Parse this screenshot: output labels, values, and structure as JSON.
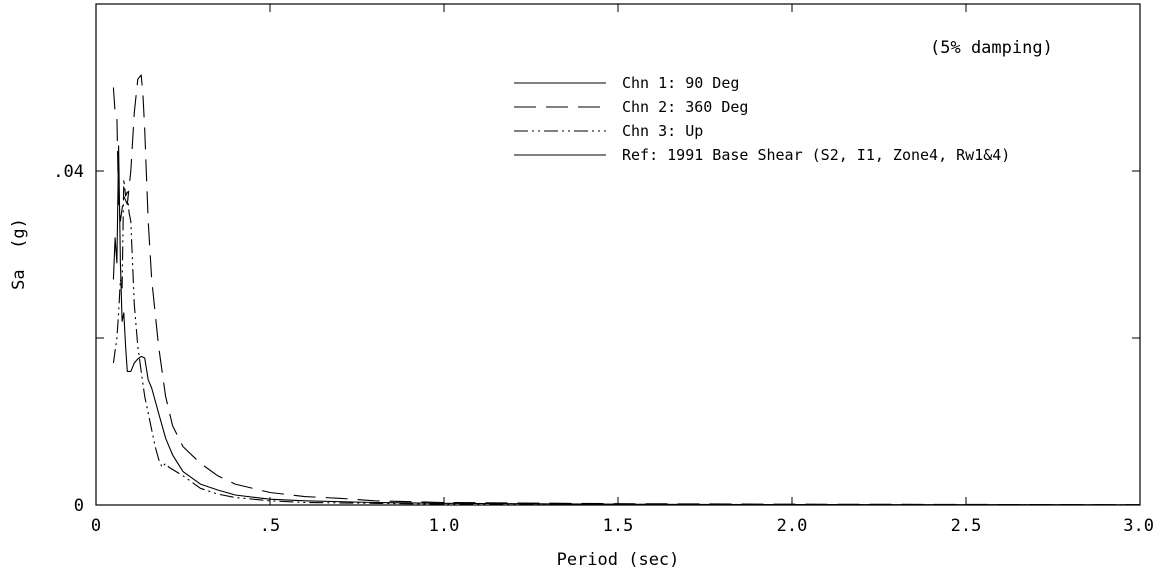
{
  "chart_data": {
    "type": "line",
    "note": "(5% damping)",
    "xlabel": "Period (sec)",
    "ylabel": "Sa  (g)",
    "xlim": [
      0,
      3.0
    ],
    "ylim": [
      0,
      0.06
    ],
    "x_ticks": [
      {
        "value": 0,
        "label": "0"
      },
      {
        "value": 0.5,
        "label": ".5"
      },
      {
        "value": 1.0,
        "label": "1.0"
      },
      {
        "value": 1.5,
        "label": "1.5"
      },
      {
        "value": 2.0,
        "label": "2.0"
      },
      {
        "value": 2.5,
        "label": "2.5"
      },
      {
        "value": 3.0,
        "label": "3.0"
      }
    ],
    "y_ticks": [
      {
        "value": 0,
        "label": "0"
      },
      {
        "value": 0.02,
        "label": ""
      },
      {
        "value": 0.04,
        "label": ".04"
      }
    ],
    "grid": false,
    "legend_position": "top-right",
    "series": [
      {
        "name": "Chn 1:  90 Deg",
        "dash": "",
        "points": [
          [
            0.05,
            0.027
          ],
          [
            0.055,
            0.032
          ],
          [
            0.06,
            0.029
          ],
          [
            0.065,
            0.043
          ],
          [
            0.07,
            0.029
          ],
          [
            0.075,
            0.022
          ],
          [
            0.08,
            0.023
          ],
          [
            0.085,
            0.019
          ],
          [
            0.09,
            0.016
          ],
          [
            0.095,
            0.016
          ],
          [
            0.1,
            0.016
          ],
          [
            0.11,
            0.017
          ],
          [
            0.12,
            0.0175
          ],
          [
            0.13,
            0.0178
          ],
          [
            0.14,
            0.0176
          ],
          [
            0.15,
            0.015
          ],
          [
            0.16,
            0.014
          ],
          [
            0.18,
            0.011
          ],
          [
            0.2,
            0.008
          ],
          [
            0.22,
            0.006
          ],
          [
            0.25,
            0.004
          ],
          [
            0.3,
            0.0025
          ],
          [
            0.35,
            0.0018
          ],
          [
            0.4,
            0.0012
          ],
          [
            0.5,
            0.0007
          ],
          [
            0.6,
            0.0005
          ],
          [
            0.8,
            0.0003
          ],
          [
            1.0,
            0.0002
          ],
          [
            1.5,
            0.0001
          ],
          [
            2.0,
            5e-05
          ],
          [
            3.0,
            2e-05
          ]
        ]
      },
      {
        "name": "Chn 2:  360 Deg",
        "dash": "22 10",
        "points": [
          [
            0.05,
            0.05
          ],
          [
            0.055,
            0.047
          ],
          [
            0.06,
            0.0465
          ],
          [
            0.065,
            0.036
          ],
          [
            0.07,
            0.034
          ],
          [
            0.08,
            0.037
          ],
          [
            0.09,
            0.036
          ],
          [
            0.1,
            0.04
          ],
          [
            0.11,
            0.047
          ],
          [
            0.12,
            0.051
          ],
          [
            0.13,
            0.0515
          ],
          [
            0.135,
            0.049
          ],
          [
            0.14,
            0.045
          ],
          [
            0.15,
            0.034
          ],
          [
            0.16,
            0.027
          ],
          [
            0.18,
            0.019
          ],
          [
            0.2,
            0.013
          ],
          [
            0.22,
            0.0095
          ],
          [
            0.25,
            0.007
          ],
          [
            0.3,
            0.005
          ],
          [
            0.35,
            0.0035
          ],
          [
            0.4,
            0.0025
          ],
          [
            0.5,
            0.0015
          ],
          [
            0.6,
            0.001
          ],
          [
            0.7,
            0.0008
          ],
          [
            0.8,
            0.0005
          ],
          [
            1.0,
            0.0003
          ],
          [
            1.5,
            0.00015
          ],
          [
            2.0,
            0.0001
          ],
          [
            3.0,
            4e-05
          ]
        ]
      },
      {
        "name": "Chn 3:  Up",
        "dash": "14 4 2 4 2 4",
        "points": [
          [
            0.05,
            0.017
          ],
          [
            0.06,
            0.02
          ],
          [
            0.065,
            0.023
          ],
          [
            0.07,
            0.027
          ],
          [
            0.075,
            0.026
          ],
          [
            0.08,
            0.039
          ],
          [
            0.085,
            0.037
          ],
          [
            0.09,
            0.0375
          ],
          [
            0.095,
            0.035
          ],
          [
            0.1,
            0.034
          ],
          [
            0.11,
            0.024
          ],
          [
            0.12,
            0.019
          ],
          [
            0.13,
            0.016
          ],
          [
            0.14,
            0.013
          ],
          [
            0.15,
            0.011
          ],
          [
            0.16,
            0.009
          ],
          [
            0.17,
            0.007
          ],
          [
            0.18,
            0.0055
          ],
          [
            0.19,
            0.0045
          ],
          [
            0.2,
            0.005
          ],
          [
            0.21,
            0.0045
          ],
          [
            0.25,
            0.0035
          ],
          [
            0.3,
            0.002
          ],
          [
            0.35,
            0.0013
          ],
          [
            0.4,
            0.0009
          ],
          [
            0.5,
            0.0005
          ],
          [
            0.6,
            0.0003
          ],
          [
            0.8,
            0.0002
          ],
          [
            1.0,
            0.0001
          ],
          [
            2.0,
            3e-05
          ],
          [
            3.0,
            1e-05
          ]
        ]
      },
      {
        "name": "Ref:  1991 Base Shear  (S2, I1, Zone4, Rw1&4)",
        "dash": "",
        "points": []
      }
    ]
  }
}
